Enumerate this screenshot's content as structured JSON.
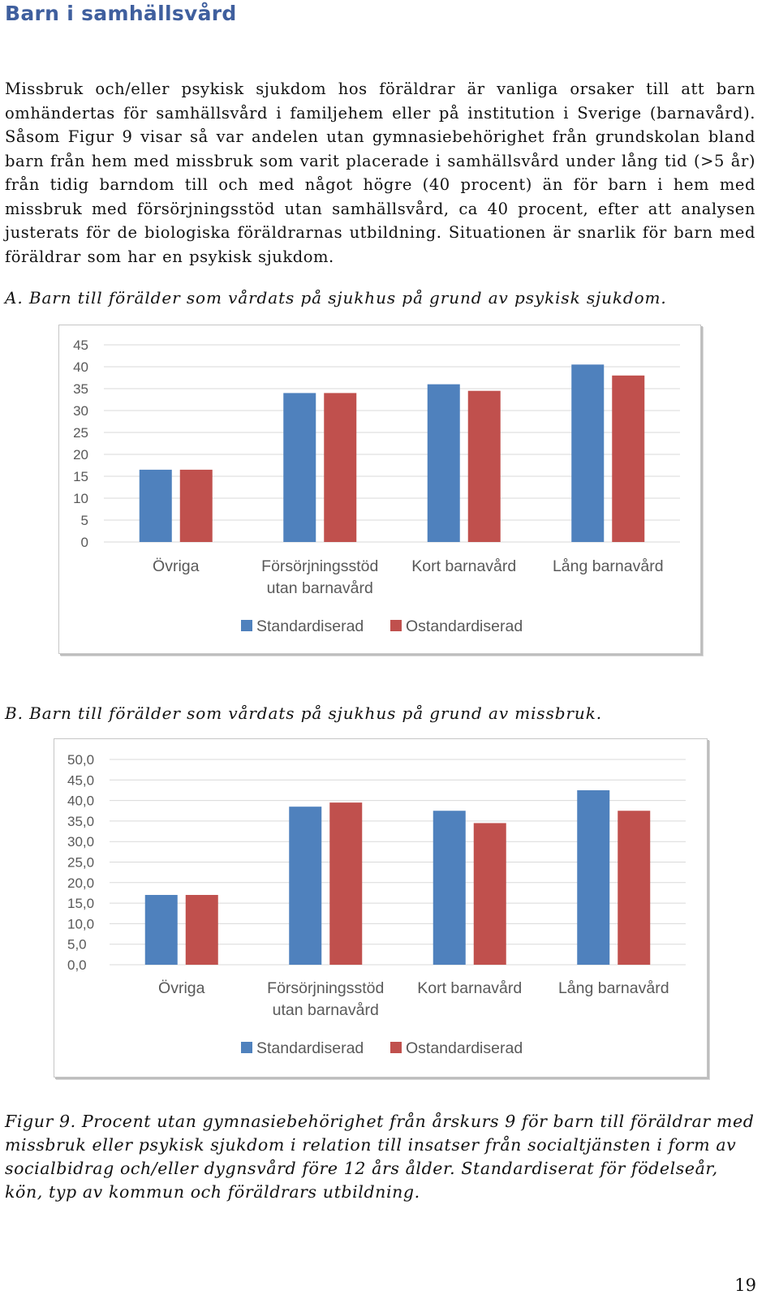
{
  "heading": "Barn i samhällsvård",
  "body_text": "Missbruk och/eller psykisk sjukdom hos föräldrar är vanliga orsaker till att barn omhändertas för samhällsvård i familjehem eller på institution i Sverige (barnavård). Såsom Figur 9 visar så var andelen utan gymnasiebehörighet från grundskolan bland barn från hem med missbruk som varit placerade i samhällsvård under lång tid (>5 år) från tidig barndom till och med något högre (40 procent) än för barn i hem med missbruk med försörjningsstöd utan samhällsvård, ca 40 procent, efter att analysen justerats för de biologiska föräldrarnas utbildning. Situationen är snarlik för barn med föräldrar som har en psykisk sjukdom.",
  "panel_a_label": "A. Barn till förälder som vårdats på sjukhus på grund av psykisk sjukdom.",
  "panel_b_label": "B. Barn till förälder som vårdats på sjukhus på grund av missbruk.",
  "figure_caption": "Figur 9. Procent utan gymnasiebehörighet från årskurs 9 för barn till föräldrar med missbruk eller psykisk sjukdom i relation till insatser från socialtjänsten i form av socialbidrag och/eller dygnsvård före 12 års ålder. Standardiserat för födelseår, kön, typ av kommun och föräldrars utbildning.",
  "page_number": "19",
  "colors": {
    "standardiserad": "#4f81bd",
    "ostandardiserad": "#c0504d",
    "heading": "#3f5f9e",
    "axis_text": "#595959",
    "gridline": "#d9d9d9"
  },
  "chart_data": [
    {
      "type": "bar",
      "title": "",
      "categories": [
        [
          "Övriga"
        ],
        [
          "Försörjningsstöd",
          "utan barnavård"
        ],
        [
          "Kort barnavård"
        ],
        [
          "Lång barnavård"
        ]
      ],
      "yticks": [
        "0",
        "5",
        "10",
        "15",
        "20",
        "25",
        "30",
        "35",
        "40",
        "45"
      ],
      "ylim": [
        0,
        45
      ],
      "grid": true,
      "legend_position": "bottom",
      "series": [
        {
          "name": "Standardiserad",
          "color": "#4f81bd",
          "values": [
            16.5,
            34,
            36,
            40.5
          ]
        },
        {
          "name": "Ostandardiserad",
          "color": "#c0504d",
          "values": [
            16.5,
            34,
            34.5,
            38
          ]
        }
      ]
    },
    {
      "type": "bar",
      "title": "",
      "categories": [
        [
          "Övriga"
        ],
        [
          "Försörjningsstöd",
          "utan barnavård"
        ],
        [
          "Kort  barnavård"
        ],
        [
          "Lång   barnavård"
        ]
      ],
      "yticks": [
        "0,0",
        "5,0",
        "10,0",
        "15,0",
        "20,0",
        "25,0",
        "30,0",
        "35,0",
        "40,0",
        "45,0",
        "50,0"
      ],
      "ylim": [
        0,
        50
      ],
      "grid": true,
      "legend_position": "bottom",
      "series": [
        {
          "name": "Standardiserad",
          "color": "#4f81bd",
          "values": [
            17,
            38.5,
            37.5,
            42.5
          ]
        },
        {
          "name": "Ostandardiserad",
          "color": "#c0504d",
          "values": [
            17,
            39.5,
            34.5,
            37.5
          ]
        }
      ]
    }
  ]
}
